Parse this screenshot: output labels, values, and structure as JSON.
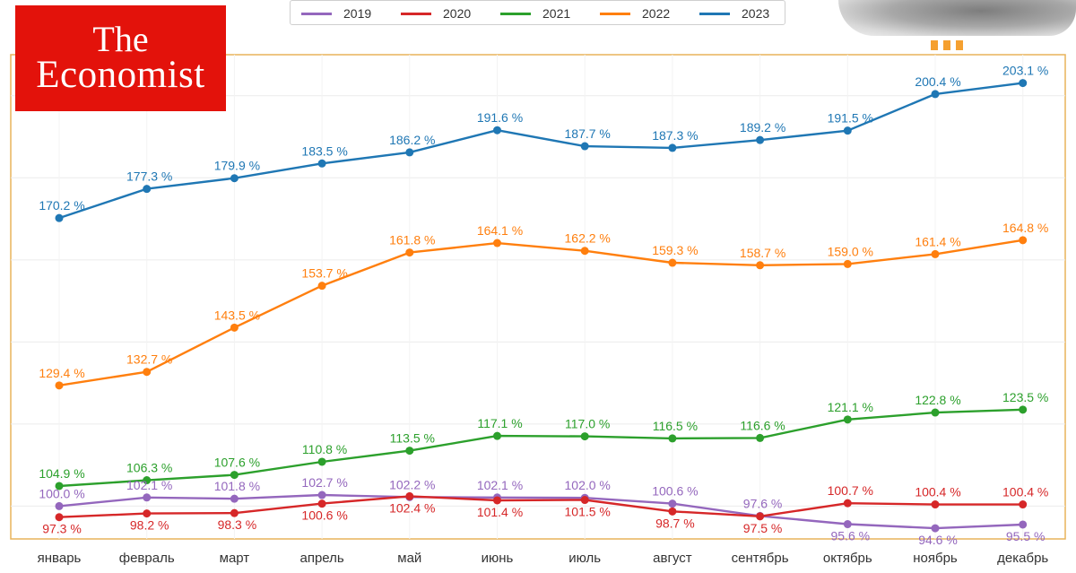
{
  "logo": {
    "line1": "The",
    "line2": "Economist"
  },
  "chart_data": {
    "type": "line",
    "title": "",
    "xlabel": "",
    "ylabel": "",
    "ylim": [
      92,
      210
    ],
    "grid": true,
    "legend_position": "top-center",
    "value_suffix": " %",
    "categories": [
      "январь",
      "февраль",
      "март",
      "апрель",
      "май",
      "июнь",
      "июль",
      "август",
      "сентябрь",
      "октябрь",
      "ноябрь",
      "декабрь"
    ],
    "series": [
      {
        "name": "2019",
        "color": "#9467bd",
        "values": [
          100.0,
          102.1,
          101.8,
          102.7,
          102.2,
          102.1,
          102.0,
          100.6,
          97.6,
          95.6,
          94.6,
          95.5
        ]
      },
      {
        "name": "2020",
        "color": "#d62728",
        "values": [
          97.3,
          98.2,
          98.3,
          100.6,
          102.4,
          101.4,
          101.5,
          98.7,
          97.5,
          100.7,
          100.4,
          100.4
        ]
      },
      {
        "name": "2021",
        "color": "#2ca02c",
        "values": [
          104.9,
          106.3,
          107.6,
          110.8,
          113.5,
          117.1,
          117.0,
          116.5,
          116.6,
          121.1,
          122.8,
          123.5
        ]
      },
      {
        "name": "2022",
        "color": "#ff7f0e",
        "values": [
          129.4,
          132.7,
          143.5,
          153.7,
          161.8,
          164.1,
          162.2,
          159.3,
          158.7,
          159.0,
          161.4,
          164.8
        ]
      },
      {
        "name": "2023",
        "color": "#1f77b4",
        "values": [
          170.2,
          177.3,
          179.9,
          183.5,
          186.2,
          191.6,
          187.7,
          187.3,
          189.2,
          191.5,
          200.4,
          203.1
        ]
      }
    ]
  }
}
